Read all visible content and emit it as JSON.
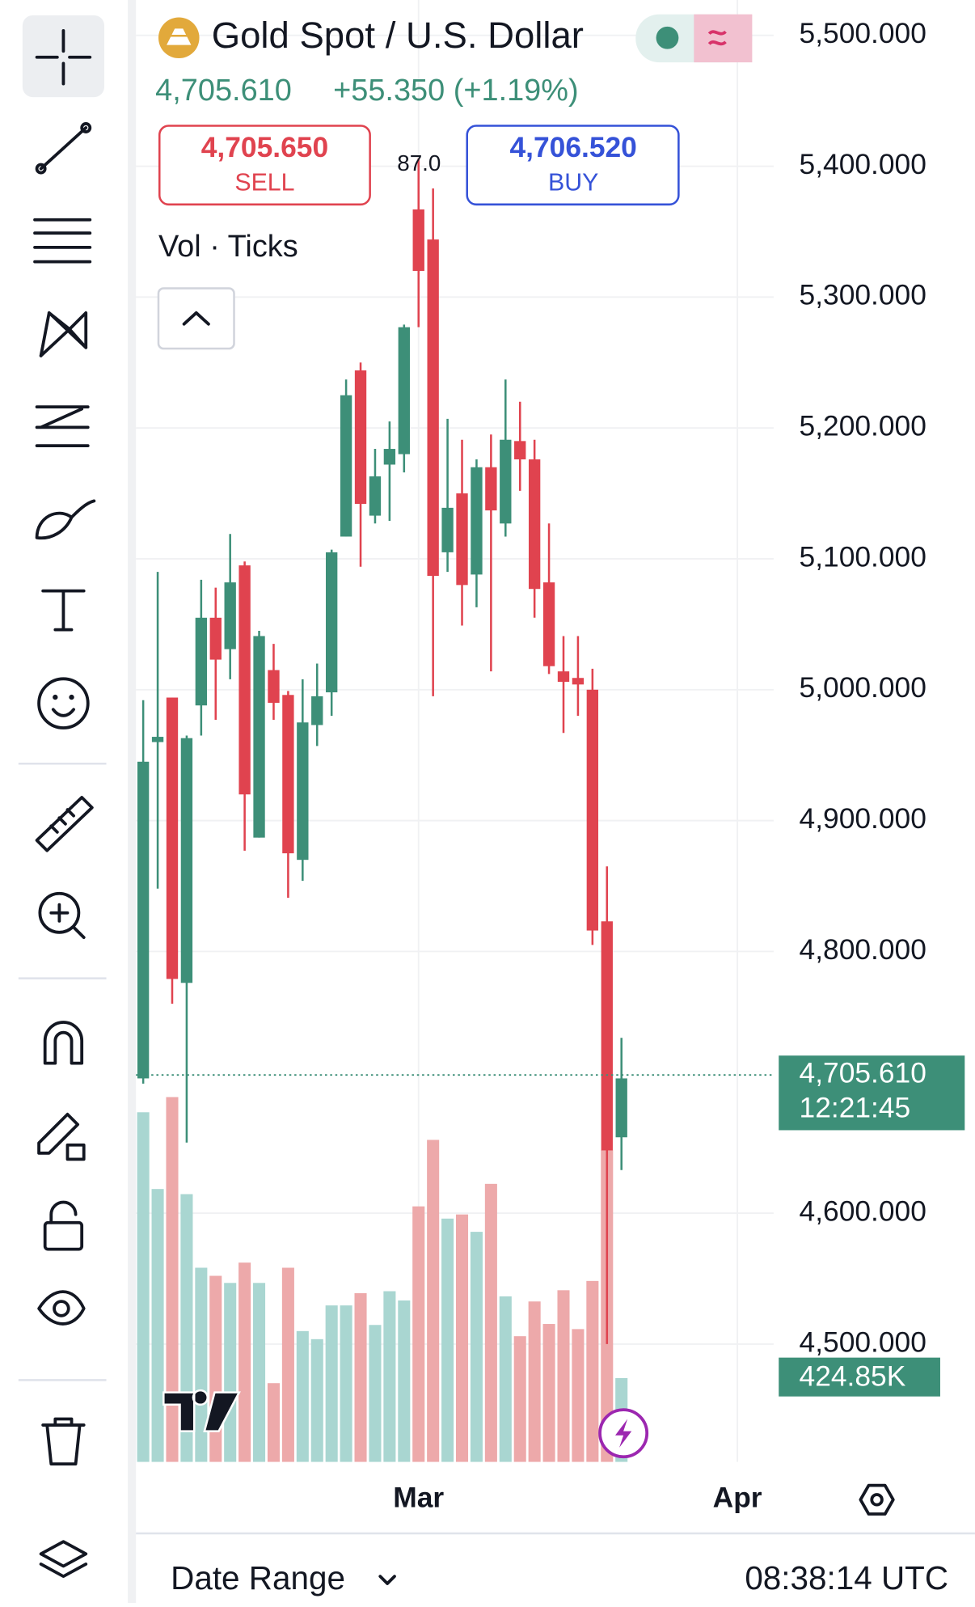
{
  "header": {
    "title": "Gold Spot / U.S. Dollar",
    "price": "4,705.610",
    "change": "+55.350 (+1.19%)",
    "sell_price": "4,705.650",
    "sell_label": "SELL",
    "spread": "87.0",
    "buy_price": "4,706.520",
    "buy_label": "BUY",
    "indicator": "Vol · Ticks"
  },
  "footer": {
    "date_range": "Date Range",
    "clock": "08:38:14 UTC"
  },
  "chart_data": {
    "type": "candlestick",
    "open": [
      4703,
      4960,
      4994,
      4776,
      4988,
      5055,
      5031,
      5095,
      4887,
      5015,
      4996,
      4870,
      4973,
      4998,
      5117,
      5244,
      5133,
      5172,
      5180,
      5367,
      5344,
      5105,
      5150,
      5088,
      5170,
      5127,
      5190,
      5176,
      5082,
      5014,
      5009,
      5000,
      4823,
      4658
    ],
    "high": [
      4992,
      5090,
      4994,
      4965,
      5084,
      5078,
      5119,
      5098,
      5045,
      5035,
      4999,
      5008,
      5020,
      5107,
      5237,
      5250,
      5184,
      5205,
      5279,
      5406,
      5383,
      5207,
      5191,
      5176,
      5195,
      5237,
      5220,
      5191,
      5127,
      5041,
      5041,
      5016,
      4865,
      4734
    ],
    "low": [
      4699,
      4848,
      4760,
      4654,
      4965,
      4977,
      5008,
      4877,
      4887,
      4977,
      4841,
      4854,
      4957,
      4980,
      5117,
      5094,
      5127,
      5129,
      5166,
      5277,
      4995,
      5090,
      5049,
      5063,
      5014,
      5117,
      5152,
      5055,
      5012,
      4967,
      4980,
      4805,
      4500,
      4633
    ],
    "close": [
      4945,
      4964,
      4779,
      4963,
      5055,
      5023,
      5082,
      4920,
      5041,
      4990,
      4875,
      4975,
      4995,
      5105,
      5225,
      5142,
      5163,
      5184,
      5277,
      5320,
      5087,
      5139,
      5080,
      5170,
      5137,
      5191,
      5176,
      5077,
      5018,
      5006,
      5004,
      4816,
      4648,
      4703
    ],
    "volume": [
      1772,
      1383,
      1849,
      1357,
      984,
      943,
      907,
      1010,
      907,
      399,
      984,
      663,
      622,
      793,
      793,
      855,
      694,
      865,
      818,
      1295,
      1632,
      1233,
      1254,
      1166,
      1409,
      839,
      637,
      813,
      699,
      870,
      673,
      917,
      1580,
      424.85
    ],
    "volume_label": "424.85K",
    "vlim": [
      0,
      2000
    ],
    "up_color": "#3d8f78",
    "down_color": "#e0434f",
    "up_volume_color": "#a9d6d1",
    "down_volume_color": "#eda9aa",
    "xlim": [
      -0.5,
      43.5
    ],
    "xticks": [
      {
        "value": 19,
        "label": "Mar"
      },
      {
        "value": 41,
        "label": "Apr"
      }
    ],
    "ylim": [
      4410,
      5527
    ],
    "yticks": [
      {
        "value": 5500,
        "label": "5,500.000"
      },
      {
        "value": 5400,
        "label": "5,400.000"
      },
      {
        "value": 5300,
        "label": "5,300.000"
      },
      {
        "value": 5200,
        "label": "5,200.000"
      },
      {
        "value": 5100,
        "label": "5,100.000"
      },
      {
        "value": 5000,
        "label": "5,000.000"
      },
      {
        "value": 4900,
        "label": "4,900.000"
      },
      {
        "value": 4800,
        "label": "4,800.000"
      },
      {
        "value": 4600,
        "label": "4,600.000"
      },
      {
        "value": 4500,
        "label": "4,500.000"
      }
    ],
    "price_line": {
      "value": 4705.61,
      "label": "4,705.610",
      "countdown": "12:21:45"
    },
    "grid": true
  }
}
